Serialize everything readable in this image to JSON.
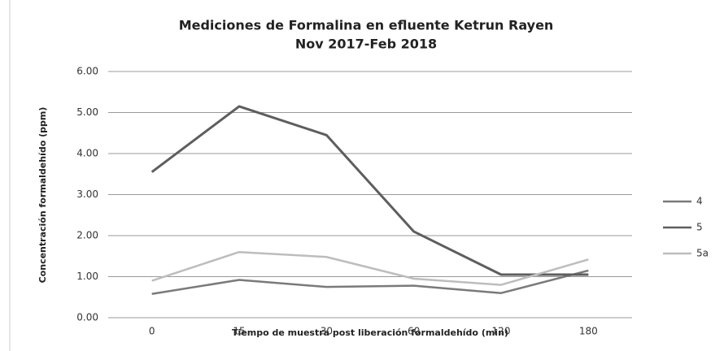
{
  "chart_data": {
    "type": "line",
    "title": "Mediciones de Formalina en efluente Ketrun Rayen",
    "subtitle": "Nov 2017-Feb 2018",
    "x_label": "Tiempo de muestra post liberación formaldehído (min)",
    "y_label": "Concentración formaldehído (ppm)",
    "categories": [
      "0",
      "15",
      "30",
      "60",
      "120",
      "180"
    ],
    "series": [
      {
        "name": "4",
        "color": "#7a7a7a",
        "values": [
          0.58,
          0.92,
          0.75,
          0.78,
          0.6,
          1.15
        ]
      },
      {
        "name": "5",
        "color": "#5e5e5e",
        "values": [
          3.55,
          5.15,
          4.45,
          2.1,
          1.05,
          1.05
        ]
      },
      {
        "name": "5a",
        "color": "#bdbdbd",
        "values": [
          0.9,
          1.6,
          1.48,
          0.95,
          0.8,
          1.42
        ]
      }
    ],
    "ylim": [
      0,
      6
    ],
    "yticks": [
      {
        "value": 0,
        "label": "0.00"
      },
      {
        "value": 1,
        "label": "1.00"
      },
      {
        "value": 2,
        "label": "2.00"
      },
      {
        "value": 3,
        "label": "3.00"
      },
      {
        "value": 4,
        "label": "4.00"
      },
      {
        "value": 5,
        "label": "5.00"
      },
      {
        "value": 6,
        "label": "6.00"
      }
    ],
    "grid": true,
    "legend": "right"
  }
}
